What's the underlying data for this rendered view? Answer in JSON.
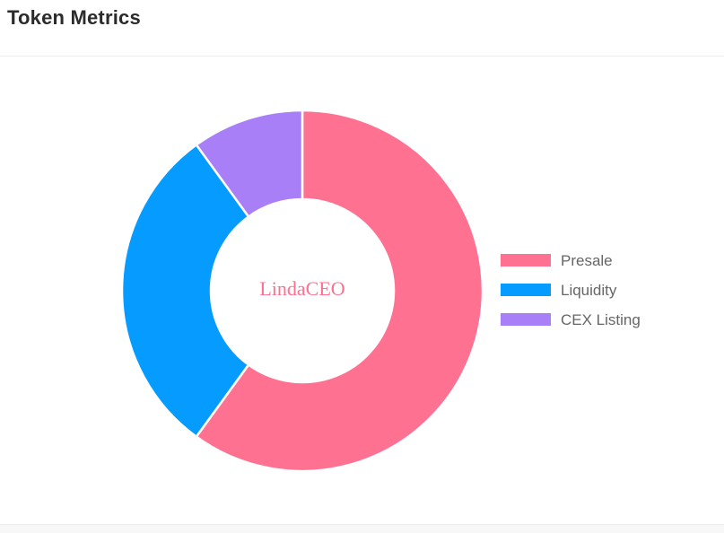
{
  "header": {
    "title": "Token Metrics"
  },
  "chart_data": {
    "type": "pie",
    "variant": "doughnut",
    "center_label": "LindaCEO",
    "center_label_color": "#ff6f8f",
    "slice_border_color": "#ffffff",
    "legend_position": "right",
    "categories": [
      "Presale",
      "Liquidity",
      "CEX Listing"
    ],
    "values": [
      60,
      30,
      10
    ],
    "colors": [
      "#ff7190",
      "#069bff",
      "#a97ff7"
    ],
    "legend_text_color": "#666666"
  }
}
